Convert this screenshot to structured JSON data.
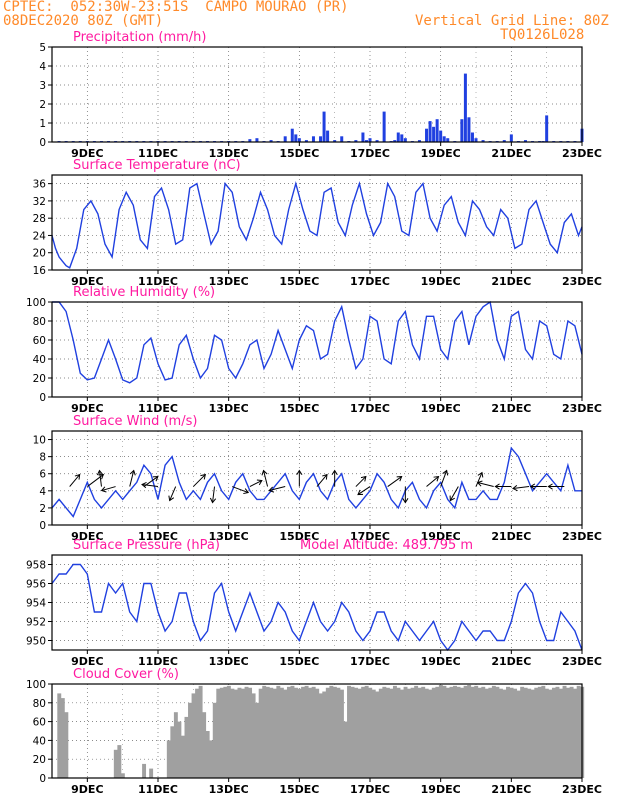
{
  "header": {
    "station_line": "CPTEC:  052:30W-23:51S  CAMPO MOURAO (PR)",
    "run": "08DEC2020 80Z (GMT)",
    "grid_note": "Vertical Grid Line: 80Z",
    "code": "TQ0126L028"
  },
  "colors": {
    "header": "#ff8a2a",
    "title": "#ff1aa0",
    "line": "#2040e0",
    "cloud": "#a0a0a0",
    "arrow": "#000000"
  },
  "x_axis": {
    "start_day": 8,
    "end_day": 23,
    "ticks": [
      {
        "day": 9,
        "label": "9DEC"
      },
      {
        "day": 11,
        "label": "11DEC"
      },
      {
        "day": 13,
        "label": "13DEC"
      },
      {
        "day": 15,
        "label": "15DEC"
      },
      {
        "day": 17,
        "label": "17DEC"
      },
      {
        "day": 19,
        "label": "19DEC"
      },
      {
        "day": 21,
        "label": "21DEC"
      },
      {
        "day": 23,
        "label": "23DEC"
      }
    ]
  },
  "chart_data": [
    {
      "type": "bar",
      "title": "Precipitation (mm/h)",
      "ylim": [
        0,
        5
      ],
      "yticks": [
        0,
        1,
        2,
        3,
        4,
        5
      ],
      "x": [
        8.2,
        8.4,
        8.6,
        8.8,
        9.0,
        9.2,
        9.4,
        9.6,
        9.8,
        10.0,
        10.2,
        10.4,
        10.6,
        10.8,
        11.0,
        11.2,
        11.4,
        11.6,
        11.8,
        12.0,
        12.2,
        12.4,
        12.6,
        12.8,
        13.0,
        13.2,
        13.4,
        13.6,
        13.8,
        14.0,
        14.2,
        14.4,
        14.6,
        14.8,
        14.9,
        15.0,
        15.2,
        15.4,
        15.6,
        15.7,
        15.8,
        16.0,
        16.2,
        16.4,
        16.6,
        16.8,
        16.9,
        17.0,
        17.2,
        17.4,
        17.6,
        17.7,
        17.8,
        17.9,
        18.0,
        18.2,
        18.4,
        18.6,
        18.7,
        18.8,
        18.9,
        19.0,
        19.1,
        19.2,
        19.4,
        19.6,
        19.7,
        19.8,
        19.9,
        20.0,
        20.2,
        20.4,
        20.6,
        20.8,
        21.0,
        21.2,
        21.4,
        21.6,
        21.8,
        21.9,
        22.0,
        22.2,
        22.4,
        22.6,
        22.8,
        23.0
      ],
      "values": [
        0.05,
        0.05,
        0.05,
        0.05,
        0.05,
        0.05,
        0.05,
        0.05,
        0.05,
        0.05,
        0.05,
        0.05,
        0.05,
        0.05,
        0.05,
        0.05,
        0.05,
        0.05,
        0.05,
        0.05,
        0.05,
        0.05,
        0.05,
        0.05,
        0.05,
        0.05,
        0.05,
        0.15,
        0.2,
        0.05,
        0.1,
        0.05,
        0.3,
        0.7,
        0.4,
        0.2,
        0.1,
        0.3,
        0.3,
        1.6,
        0.6,
        0.1,
        0.3,
        0.05,
        0.1,
        0.5,
        0.1,
        0.2,
        0.1,
        1.6,
        0.05,
        0.1,
        0.5,
        0.4,
        0.2,
        0.05,
        0.1,
        0.7,
        1.1,
        0.8,
        1.2,
        0.6,
        0.3,
        0.2,
        0.05,
        1.2,
        3.6,
        1.3,
        0.5,
        0.2,
        0.1,
        0.05,
        0.05,
        0.1,
        0.4,
        0.05,
        0.1,
        0.05,
        0.05,
        0.05,
        1.4,
        0.05,
        0.05,
        0.05,
        0.05,
        0.7
      ]
    },
    {
      "type": "line",
      "title": "Surface Temperature (nC)",
      "ylim": [
        16,
        38
      ],
      "yticks": [
        16,
        20,
        24,
        28,
        32,
        36
      ],
      "x": [
        8.0,
        8.1,
        8.2,
        8.3,
        8.4,
        8.5,
        8.7,
        8.9,
        9.1,
        9.3,
        9.5,
        9.7,
        9.9,
        10.1,
        10.3,
        10.5,
        10.7,
        10.9,
        11.1,
        11.3,
        11.5,
        11.7,
        11.9,
        12.1,
        12.3,
        12.5,
        12.7,
        12.9,
        13.1,
        13.3,
        13.5,
        13.7,
        13.9,
        14.1,
        14.3,
        14.5,
        14.7,
        14.9,
        15.1,
        15.3,
        15.5,
        15.7,
        15.9,
        16.1,
        16.3,
        16.5,
        16.7,
        16.9,
        17.1,
        17.3,
        17.5,
        17.7,
        17.9,
        18.1,
        18.3,
        18.5,
        18.7,
        18.9,
        19.1,
        19.3,
        19.5,
        19.7,
        19.9,
        20.1,
        20.3,
        20.5,
        20.7,
        20.9,
        21.1,
        21.3,
        21.5,
        21.7,
        21.9,
        22.1,
        22.3,
        22.5,
        22.7,
        22.9,
        23.0
      ],
      "values": [
        24,
        21,
        19,
        18,
        17,
        16.5,
        21,
        30,
        32,
        29,
        22,
        19,
        30,
        34,
        31,
        23,
        21,
        33,
        35,
        30,
        22,
        23,
        35,
        36,
        29,
        22,
        25,
        36,
        34,
        26,
        23,
        28,
        34,
        30,
        24,
        22,
        30,
        36,
        30,
        25,
        24,
        34,
        35,
        27,
        24,
        31,
        36,
        29,
        24,
        27,
        36,
        33,
        25,
        24,
        34,
        36,
        28,
        25,
        31,
        33,
        27,
        24,
        32,
        30,
        26,
        24,
        30,
        28,
        21,
        22,
        30,
        32,
        27,
        22,
        20,
        27,
        29,
        24,
        26
      ]
    },
    {
      "type": "line",
      "title": "Relative Humidity (%)",
      "ylim": [
        0,
        100
      ],
      "yticks": [
        0,
        20,
        40,
        60,
        80,
        100
      ],
      "x": [
        8.0,
        8.2,
        8.4,
        8.6,
        8.8,
        9.0,
        9.2,
        9.4,
        9.6,
        9.8,
        10.0,
        10.2,
        10.4,
        10.6,
        10.8,
        11.0,
        11.2,
        11.4,
        11.6,
        11.8,
        12.0,
        12.2,
        12.4,
        12.6,
        12.8,
        13.0,
        13.2,
        13.4,
        13.6,
        13.8,
        14.0,
        14.2,
        14.4,
        14.6,
        14.8,
        15.0,
        15.2,
        15.4,
        15.6,
        15.8,
        16.0,
        16.2,
        16.4,
        16.6,
        16.8,
        17.0,
        17.2,
        17.4,
        17.6,
        17.8,
        18.0,
        18.2,
        18.4,
        18.6,
        18.8,
        19.0,
        19.2,
        19.4,
        19.6,
        19.8,
        20.0,
        20.2,
        20.4,
        20.6,
        20.8,
        21.0,
        21.2,
        21.4,
        21.6,
        21.8,
        22.0,
        22.2,
        22.4,
        22.6,
        22.8,
        23.0
      ],
      "values": [
        100,
        100,
        90,
        60,
        25,
        18,
        20,
        40,
        60,
        40,
        18,
        15,
        20,
        55,
        62,
        35,
        18,
        20,
        55,
        65,
        40,
        20,
        30,
        65,
        60,
        30,
        20,
        35,
        55,
        60,
        30,
        45,
        70,
        50,
        30,
        60,
        75,
        70,
        40,
        45,
        80,
        95,
        60,
        30,
        40,
        85,
        80,
        40,
        35,
        80,
        90,
        55,
        40,
        85,
        85,
        50,
        40,
        80,
        90,
        55,
        85,
        95,
        100,
        60,
        40,
        85,
        90,
        50,
        40,
        80,
        75,
        45,
        40,
        80,
        75,
        45
      ]
    },
    {
      "type": "line",
      "title": "Surface Wind (m/s)",
      "ylim": [
        0,
        11
      ],
      "yticks": [
        0,
        2,
        4,
        6,
        8,
        10
      ],
      "x": [
        8.0,
        8.2,
        8.4,
        8.6,
        8.8,
        9.0,
        9.2,
        9.4,
        9.6,
        9.8,
        10.0,
        10.2,
        10.4,
        10.6,
        10.8,
        11.0,
        11.2,
        11.4,
        11.6,
        11.8,
        12.0,
        12.2,
        12.4,
        12.6,
        12.8,
        13.0,
        13.2,
        13.4,
        13.6,
        13.8,
        14.0,
        14.2,
        14.4,
        14.6,
        14.8,
        15.0,
        15.2,
        15.4,
        15.6,
        15.8,
        16.0,
        16.2,
        16.4,
        16.6,
        16.8,
        17.0,
        17.2,
        17.4,
        17.6,
        17.8,
        18.0,
        18.2,
        18.4,
        18.6,
        18.8,
        19.0,
        19.2,
        19.4,
        19.6,
        19.8,
        20.0,
        20.2,
        20.4,
        20.6,
        20.8,
        21.0,
        21.2,
        21.4,
        21.6,
        21.8,
        22.0,
        22.2,
        22.4,
        22.6,
        22.8,
        23.0
      ],
      "values": [
        2,
        3,
        2,
        1,
        3,
        5,
        3,
        2,
        3,
        4,
        3,
        4,
        5,
        7,
        6,
        3,
        7,
        8,
        5,
        3,
        4,
        3,
        5,
        6,
        4,
        3,
        5,
        6,
        4,
        3,
        3,
        4,
        5,
        6,
        4,
        3,
        5,
        6,
        4,
        3,
        5,
        6,
        3,
        2,
        3,
        4,
        6,
        5,
        3,
        2,
        4,
        5,
        3,
        2,
        4,
        5,
        3,
        2,
        5,
        3,
        3,
        4,
        3,
        3,
        5,
        9,
        8,
        6,
        4,
        5,
        6,
        5,
        4,
        7,
        4,
        4
      ],
      "vectors": [
        {
          "x": 8.5,
          "u": 0.5,
          "v": 0.6
        },
        {
          "x": 9.0,
          "u": 0.8,
          "v": 0.6
        },
        {
          "x": 9.4,
          "u": -0.1,
          "v": 0.8
        },
        {
          "x": 9.8,
          "u": -0.7,
          "v": -0.2
        },
        {
          "x": 10.2,
          "u": 0.2,
          "v": 0.8
        },
        {
          "x": 10.6,
          "u": 0.7,
          "v": 0.5
        },
        {
          "x": 11.0,
          "u": -0.8,
          "v": 0.1
        },
        {
          "x": 11.5,
          "u": -0.3,
          "v": -0.7
        },
        {
          "x": 12.0,
          "u": 0.6,
          "v": 0.6
        },
        {
          "x": 12.6,
          "u": -0.1,
          "v": -0.8
        },
        {
          "x": 13.1,
          "u": 0.8,
          "v": -0.3
        },
        {
          "x": 13.6,
          "u": 0.6,
          "v": 0.3
        },
        {
          "x": 14.1,
          "u": -0.2,
          "v": 0.8
        },
        {
          "x": 14.6,
          "u": -0.8,
          "v": -0.2
        },
        {
          "x": 15.0,
          "u": 0.0,
          "v": 0.8
        },
        {
          "x": 15.5,
          "u": 0.5,
          "v": 0.6
        },
        {
          "x": 16.0,
          "u": 0.0,
          "v": 0.8
        },
        {
          "x": 16.6,
          "u": 0.5,
          "v": 0.5
        },
        {
          "x": 17.0,
          "u": -0.6,
          "v": -0.4
        },
        {
          "x": 17.5,
          "u": 0.7,
          "v": 0.5
        },
        {
          "x": 18.0,
          "u": 0.0,
          "v": -0.8
        },
        {
          "x": 18.6,
          "u": 0.6,
          "v": 0.5
        },
        {
          "x": 19.0,
          "u": 0.3,
          "v": 0.8
        },
        {
          "x": 19.5,
          "u": -0.4,
          "v": -0.7
        },
        {
          "x": 20.0,
          "u": 0.3,
          "v": 0.7
        },
        {
          "x": 20.5,
          "u": -0.8,
          "v": 0.2
        },
        {
          "x": 21.0,
          "u": -0.8,
          "v": 0.0
        },
        {
          "x": 21.5,
          "u": -0.8,
          "v": -0.1
        },
        {
          "x": 22.0,
          "u": -0.8,
          "v": 0.0
        },
        {
          "x": 22.5,
          "u": -0.8,
          "v": 0.0
        }
      ]
    },
    {
      "type": "line",
      "title": "Surface Pressure (hPa)",
      "ylim": [
        949,
        959
      ],
      "yticks": [
        950,
        952,
        954,
        956,
        958
      ],
      "x": [
        8.0,
        8.2,
        8.4,
        8.6,
        8.8,
        9.0,
        9.2,
        9.4,
        9.6,
        9.8,
        10.0,
        10.2,
        10.4,
        10.6,
        10.8,
        11.0,
        11.2,
        11.4,
        11.6,
        11.8,
        12.0,
        12.2,
        12.4,
        12.6,
        12.8,
        13.0,
        13.2,
        13.4,
        13.6,
        13.8,
        14.0,
        14.2,
        14.4,
        14.6,
        14.8,
        15.0,
        15.2,
        15.4,
        15.6,
        15.8,
        16.0,
        16.2,
        16.4,
        16.6,
        16.8,
        17.0,
        17.2,
        17.4,
        17.6,
        17.8,
        18.0,
        18.2,
        18.4,
        18.6,
        18.8,
        19.0,
        19.2,
        19.4,
        19.6,
        19.8,
        20.0,
        20.2,
        20.4,
        20.6,
        20.8,
        21.0,
        21.2,
        21.4,
        21.6,
        21.8,
        22.0,
        22.2,
        22.4,
        22.6,
        22.8,
        23.0
      ],
      "values": [
        956,
        957,
        957,
        958,
        958,
        957,
        953,
        953,
        956,
        955,
        956,
        953,
        952,
        956,
        956,
        953,
        951,
        952,
        955,
        955,
        952,
        950,
        951,
        955,
        956,
        953,
        951,
        953,
        955,
        953,
        951,
        952,
        954,
        953,
        951,
        950,
        952,
        954,
        952,
        951,
        952,
        954,
        953,
        951,
        950,
        951,
        953,
        953,
        951,
        950,
        952,
        951,
        950,
        951,
        952,
        950,
        949,
        950,
        952,
        951,
        950,
        951,
        951,
        950,
        950,
        952,
        955,
        956,
        955,
        952,
        950,
        950,
        953,
        952,
        951,
        949
      ]
    },
    {
      "type": "area",
      "title": "Cloud Cover (%)",
      "ylim": [
        0,
        100
      ],
      "yticks": [
        0,
        20,
        40,
        60,
        80,
        100
      ],
      "x": [
        8.0,
        8.1,
        8.2,
        8.3,
        8.4,
        8.5,
        8.6,
        8.7,
        8.8,
        8.9,
        9.0,
        9.1,
        9.2,
        9.3,
        9.4,
        9.5,
        9.6,
        9.7,
        9.8,
        9.9,
        10.0,
        10.1,
        10.2,
        10.3,
        10.4,
        10.5,
        10.6,
        10.7,
        10.8,
        10.9,
        11.0,
        11.1,
        11.2,
        11.3,
        11.4,
        11.5,
        11.6,
        11.7,
        11.8,
        11.9,
        12.0,
        12.1,
        12.2,
        12.3,
        12.4,
        12.5,
        12.6,
        12.7,
        12.8,
        12.9,
        13.0,
        13.1,
        13.2,
        13.3,
        13.4,
        13.5,
        13.6,
        13.7,
        13.8,
        13.9,
        14.0,
        14.1,
        14.2,
        14.3,
        14.4,
        14.5,
        14.6,
        14.7,
        14.8,
        14.9,
        15.0,
        15.1,
        15.2,
        15.3,
        15.4,
        15.5,
        15.6,
        15.7,
        15.8,
        15.9,
        16.0,
        16.1,
        16.2,
        16.3,
        16.4,
        16.5,
        16.6,
        16.7,
        16.8,
        16.9,
        17.0,
        17.1,
        17.2,
        17.3,
        17.4,
        17.5,
        17.6,
        17.7,
        17.8,
        17.9,
        18.0,
        18.1,
        18.2,
        18.3,
        18.4,
        18.5,
        18.6,
        18.7,
        18.8,
        18.9,
        19.0,
        19.1,
        19.2,
        19.3,
        19.4,
        19.5,
        19.6,
        19.7,
        19.8,
        19.9,
        20.0,
        20.1,
        20.2,
        20.3,
        20.4,
        20.5,
        20.6,
        20.7,
        20.8,
        20.9,
        21.0,
        21.1,
        21.2,
        21.3,
        21.4,
        21.5,
        21.6,
        21.7,
        21.8,
        21.9,
        22.0,
        22.1,
        22.2,
        22.3,
        22.4,
        22.5,
        22.6,
        22.7,
        22.8,
        22.9,
        23.0
      ],
      "values": [
        0,
        0,
        90,
        85,
        70,
        0,
        0,
        0,
        0,
        0,
        0,
        0,
        0,
        0,
        0,
        0,
        0,
        0,
        30,
        35,
        5,
        0,
        0,
        0,
        0,
        0,
        15,
        0,
        10,
        0,
        0,
        0,
        0,
        40,
        55,
        70,
        60,
        45,
        65,
        80,
        90,
        95,
        98,
        70,
        50,
        40,
        80,
        95,
        96,
        97,
        98,
        95,
        94,
        96,
        95,
        97,
        96,
        90,
        80,
        95,
        98,
        97,
        96,
        95,
        98,
        96,
        94,
        97,
        98,
        96,
        95,
        97,
        98,
        96,
        97,
        95,
        90,
        92,
        96,
        98,
        97,
        96,
        94,
        60,
        98,
        97,
        96,
        95,
        97,
        98,
        96,
        94,
        92,
        95,
        97,
        96,
        95,
        98,
        96,
        94,
        97,
        95,
        96,
        98,
        96,
        97,
        95,
        94,
        96,
        97,
        99,
        98,
        96,
        97,
        98,
        97,
        96,
        98,
        99,
        97,
        98,
        96,
        97,
        95,
        96,
        98,
        97,
        95,
        94,
        97,
        96,
        95,
        93,
        97,
        96,
        95,
        94,
        96,
        97,
        98,
        95,
        94,
        96,
        97,
        95,
        98,
        96,
        97,
        95,
        98,
        97
      ]
    }
  ],
  "panel_notes": {
    "model_altitude": "Model Altitude: 489.795 m"
  }
}
